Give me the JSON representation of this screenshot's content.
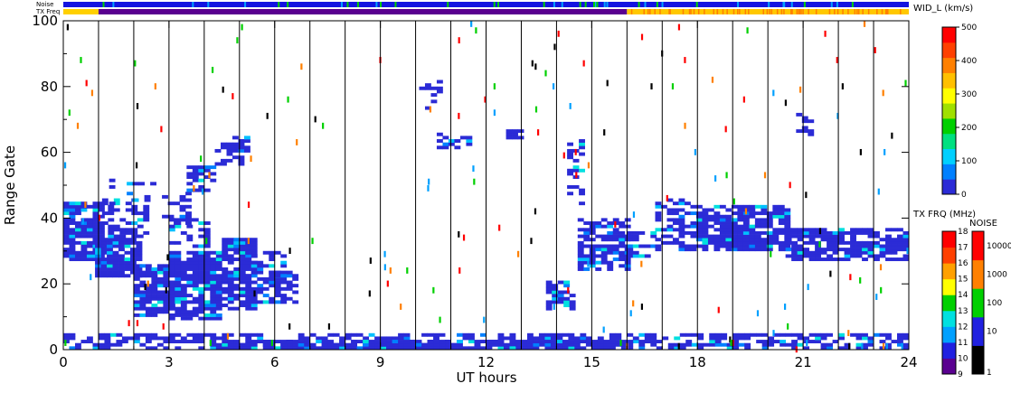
{
  "chart_data": {
    "type": "heatmap",
    "title": "",
    "xlabel": "UT hours",
    "ylabel": "Range Gate",
    "xlim": [
      0,
      24
    ],
    "ylim": [
      0,
      100
    ],
    "x_ticks": [
      "0",
      "3",
      "6",
      "9",
      "12",
      "15",
      "18",
      "21",
      "24"
    ],
    "x_tick_values": [
      0,
      3,
      6,
      9,
      12,
      15,
      18,
      21,
      24
    ],
    "y_ticks": [
      "0",
      "20",
      "40",
      "60",
      "80",
      "100"
    ],
    "y_tick_values": [
      0,
      20,
      40,
      60,
      80,
      100
    ],
    "scan_boundaries_ut": [
      1,
      2,
      3,
      4,
      5,
      6,
      7,
      8,
      9,
      10,
      11,
      12,
      13,
      14,
      15,
      16,
      17,
      18,
      19,
      20,
      21,
      22,
      23
    ],
    "top_strips": {
      "noise_label": "Noise",
      "txfreq_label": "TX Freq",
      "noise_color": "#1414e0",
      "txfreq_colors": {
        "early": "#ffd000",
        "mid": "#5a0090",
        "late": "#ffc800"
      },
      "txfreq_segments_ut": [
        [
          0,
          1,
          "early"
        ],
        [
          1,
          16,
          "mid"
        ],
        [
          16,
          24,
          "late"
        ]
      ]
    },
    "main_colorbar": {
      "title": "WID_L (km/s)",
      "min": 0,
      "max": 500,
      "ticks": [
        "0",
        "100",
        "200",
        "300",
        "400",
        "500"
      ],
      "tick_values": [
        0,
        100,
        200,
        300,
        400,
        500
      ],
      "colors": [
        "#2b2bd6",
        "#0080ff",
        "#00d0ff",
        "#00e080",
        "#00d000",
        "#a0e000",
        "#ffff00",
        "#ffc000",
        "#ff8000",
        "#ff4000",
        "#ff0000"
      ]
    },
    "txfreq_colorbar": {
      "title": "TX FRQ (MHz)",
      "ticks": [
        "9",
        "10",
        "11",
        "12",
        "13",
        "14",
        "15",
        "16",
        "17",
        "18"
      ],
      "colors": [
        "#000000",
        "#5a0090",
        "#2020e0",
        "#00a0ff",
        "#00e0e0",
        "#00d000",
        "#ffff00",
        "#ffa000",
        "#ff4000",
        "#ff0000"
      ]
    },
    "noise_colorbar": {
      "title": "NOISE",
      "ticks": [
        "1",
        "10",
        "100",
        "1000",
        "10000"
      ],
      "colors": [
        "#000000",
        "#2020e0",
        "#00d000",
        "#ff8000",
        "#ff0000"
      ]
    },
    "echo_colors": {
      "dominant": "#2b2bd6",
      "secondary": [
        "#0080ff",
        "#00c0ff",
        "#00e0e0"
      ],
      "sparse": [
        "#ff0000",
        "#00a0ff",
        "#000000",
        "#00d000",
        "#ff8000"
      ]
    },
    "echo_regions": [
      {
        "x": [
          0.0,
          1.0
        ],
        "y": [
          27,
          45
        ],
        "density": 0.85
      },
      {
        "x": [
          0.9,
          2.1
        ],
        "y": [
          22,
          34
        ],
        "density": 0.85
      },
      {
        "x": [
          1.1,
          2.4
        ],
        "y": [
          34,
          46
        ],
        "density": 0.45
      },
      {
        "x": [
          1.3,
          2.6
        ],
        "y": [
          43,
          52
        ],
        "density": 0.35
      },
      {
        "x": [
          2.0,
          3.0
        ],
        "y": [
          10,
          26
        ],
        "density": 0.8
      },
      {
        "x": [
          3.0,
          4.5
        ],
        "y": [
          9,
          30
        ],
        "density": 0.88
      },
      {
        "x": [
          4.5,
          5.5
        ],
        "y": [
          12,
          34
        ],
        "density": 0.8
      },
      {
        "x": [
          5.5,
          6.6
        ],
        "y": [
          14,
          24
        ],
        "density": 0.7
      },
      {
        "x": [
          5.0,
          6.3
        ],
        "y": [
          22,
          30
        ],
        "density": 0.4
      },
      {
        "x": [
          2.8,
          3.6
        ],
        "y": [
          38,
          48
        ],
        "density": 0.45
      },
      {
        "x": [
          3.5,
          4.3
        ],
        "y": [
          48,
          56
        ],
        "density": 0.45
      },
      {
        "x": [
          4.3,
          5.0
        ],
        "y": [
          56,
          64
        ],
        "density": 0.5
      },
      {
        "x": [
          4.8,
          5.2
        ],
        "y": [
          60,
          65
        ],
        "density": 0.6
      },
      {
        "x": [
          3.0,
          4.0
        ],
        "y": [
          30,
          40
        ],
        "density": 0.2
      },
      {
        "x": [
          10.6,
          11.5
        ],
        "y": [
          61,
          66
        ],
        "density": 0.55
      },
      {
        "x": [
          10.1,
          10.6
        ],
        "y": [
          72,
          82
        ],
        "density": 0.35
      },
      {
        "x": [
          12.4,
          12.9
        ],
        "y": [
          64,
          67
        ],
        "density": 0.5
      },
      {
        "x": [
          13.7,
          14.5
        ],
        "y": [
          12,
          21
        ],
        "density": 0.65
      },
      {
        "x": [
          14.3,
          14.7
        ],
        "y": [
          44,
          64
        ],
        "density": 0.45
      },
      {
        "x": [
          14.6,
          16.0
        ],
        "y": [
          24,
          40
        ],
        "density": 0.7
      },
      {
        "x": [
          16.0,
          16.8
        ],
        "y": [
          28,
          36
        ],
        "density": 0.6
      },
      {
        "x": [
          16.8,
          17.8
        ],
        "y": [
          30,
          46
        ],
        "density": 0.45
      },
      {
        "x": [
          17.8,
          20.5
        ],
        "y": [
          30,
          44
        ],
        "density": 0.75
      },
      {
        "x": [
          20.5,
          24.0
        ],
        "y": [
          27,
          37
        ],
        "density": 0.75
      },
      {
        "x": [
          20.8,
          21.3
        ],
        "y": [
          65,
          72
        ],
        "density": 0.4
      },
      {
        "x": [
          0.0,
          24.0
        ],
        "y": [
          0,
          5
        ],
        "density": 0.55
      },
      {
        "x": [
          4.5,
          16.0
        ],
        "y": [
          0,
          3
        ],
        "density": 0.85
      }
    ],
    "sparse_density": 0.012
  }
}
